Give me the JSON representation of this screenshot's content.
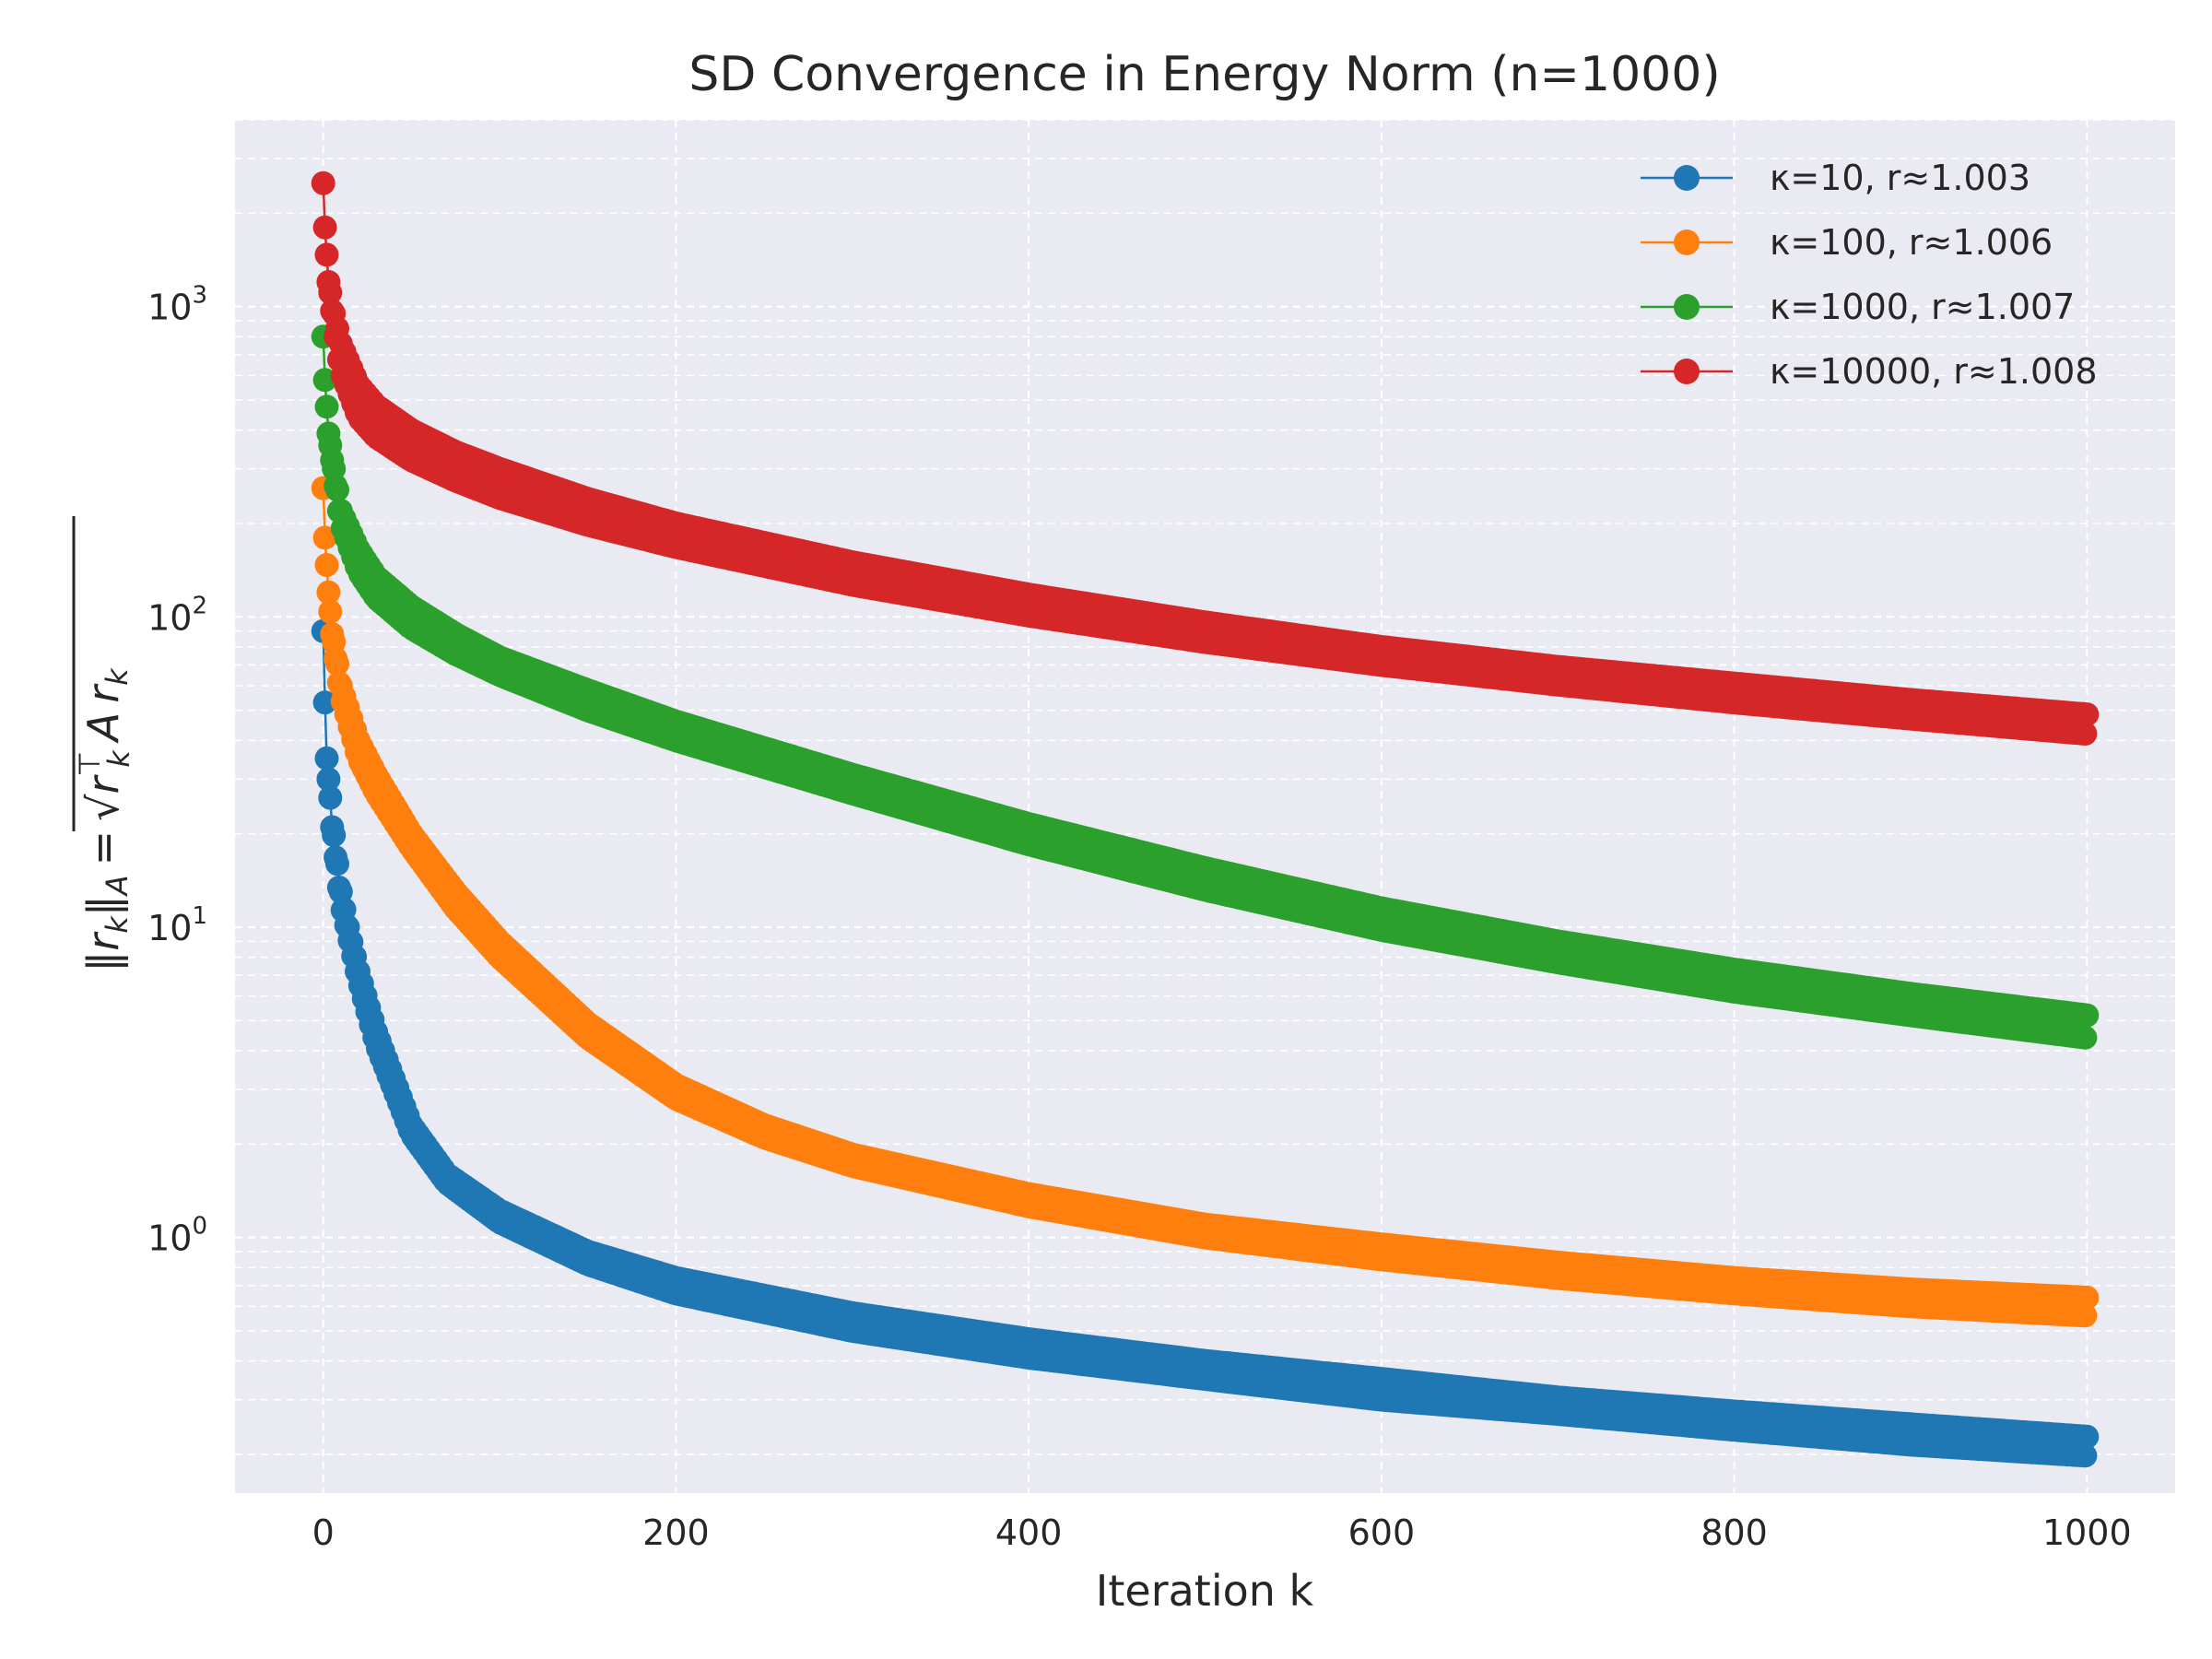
{
  "chart_data": {
    "type": "line",
    "title": "SD Convergence in Energy Norm (n=1000)",
    "xlabel": "Iteration k",
    "ylabel": "‖r_k‖_A = √(r_kᵀ A r_k)",
    "ylabel_parts": {
      "lhs_r": "r",
      "lhs_sub": "k",
      "lhs_norm_sub": "A",
      "eq": "=",
      "sqrt": "√",
      "rt_r": "r",
      "rt_sub": "k",
      "rt_sup": "⊤",
      "a": "A",
      "r2": "r",
      "r2_sub": "k"
    },
    "x_scale": "linear",
    "y_scale": "log",
    "xlim": [
      -50,
      1050
    ],
    "ylim": [
      0.15,
      4000
    ],
    "x_ticks": [
      0,
      200,
      400,
      600,
      800,
      1000
    ],
    "x_tick_labels": [
      "0",
      "200",
      "400",
      "600",
      "800",
      "1000"
    ],
    "y_ticks": [
      {
        "value": 1,
        "base": "10",
        "exp": "0"
      },
      {
        "value": 10,
        "base": "10",
        "exp": "1"
      },
      {
        "value": 100,
        "base": "10",
        "exp": "2"
      },
      {
        "value": 1000,
        "base": "10",
        "exp": "3"
      }
    ],
    "grid": true,
    "grid_minor": true,
    "legend_position": "top-right",
    "marker": "circle",
    "series": [
      {
        "name": "κ=10, r≈1.003",
        "color": "#1f77b4",
        "envelope_upper": [
          [
            0,
            90
          ],
          [
            1,
            55
          ],
          [
            2,
            35
          ],
          [
            3,
            31
          ],
          [
            5,
            22
          ],
          [
            8,
            16
          ],
          [
            10,
            13
          ],
          [
            14,
            10
          ],
          [
            20,
            7.2
          ],
          [
            30,
            4.6
          ],
          [
            50,
            2.3
          ],
          [
            70,
            1.6
          ],
          [
            100,
            1.22
          ],
          [
            150,
            0.9
          ],
          [
            200,
            0.74
          ],
          [
            300,
            0.57
          ],
          [
            400,
            0.47
          ],
          [
            500,
            0.4
          ],
          [
            600,
            0.35
          ],
          [
            700,
            0.305
          ],
          [
            800,
            0.275
          ],
          [
            900,
            0.25
          ],
          [
            1000,
            0.228
          ]
        ],
        "envelope_lower": [
          [
            0,
            90
          ],
          [
            1,
            53
          ],
          [
            2,
            33
          ],
          [
            3,
            30
          ],
          [
            5,
            21
          ],
          [
            8,
            15
          ],
          [
            10,
            12
          ],
          [
            14,
            9.6
          ],
          [
            20,
            6.8
          ],
          [
            30,
            4.2
          ],
          [
            50,
            2.15
          ],
          [
            70,
            1.5
          ],
          [
            100,
            1.12
          ],
          [
            150,
            0.82
          ],
          [
            200,
            0.66
          ],
          [
            300,
            0.5
          ],
          [
            400,
            0.41
          ],
          [
            500,
            0.35
          ],
          [
            600,
            0.3
          ],
          [
            700,
            0.27
          ],
          [
            800,
            0.24
          ],
          [
            900,
            0.215
          ],
          [
            1000,
            0.198
          ]
        ]
      },
      {
        "name": "κ=100, r≈1.006",
        "color": "#ff7f0e",
        "envelope_upper": [
          [
            0,
            260
          ],
          [
            1,
            180
          ],
          [
            3,
            120
          ],
          [
            5,
            90
          ],
          [
            10,
            60
          ],
          [
            20,
            40
          ],
          [
            30,
            31
          ],
          [
            50,
            20
          ],
          [
            75,
            13
          ],
          [
            100,
            9
          ],
          [
            150,
            4.9
          ],
          [
            200,
            3.1
          ],
          [
            250,
            2.3
          ],
          [
            300,
            1.85
          ],
          [
            400,
            1.38
          ],
          [
            500,
            1.1
          ],
          [
            600,
            0.95
          ],
          [
            700,
            0.83
          ],
          [
            800,
            0.74
          ],
          [
            900,
            0.68
          ],
          [
            1000,
            0.64
          ]
        ],
        "envelope_lower": [
          [
            0,
            260
          ],
          [
            1,
            180
          ],
          [
            3,
            120
          ],
          [
            5,
            88
          ],
          [
            10,
            56
          ],
          [
            20,
            35
          ],
          [
            30,
            27
          ],
          [
            50,
            18
          ],
          [
            75,
            11.5
          ],
          [
            100,
            8
          ],
          [
            150,
            4.4
          ],
          [
            200,
            2.8
          ],
          [
            250,
            2.1
          ],
          [
            300,
            1.7
          ],
          [
            400,
            1.26
          ],
          [
            500,
            1.0
          ],
          [
            600,
            0.85
          ],
          [
            700,
            0.74
          ],
          [
            800,
            0.66
          ],
          [
            900,
            0.6
          ],
          [
            1000,
            0.56
          ]
        ]
      },
      {
        "name": "κ=1000, r≈1.007",
        "color": "#2ca02c",
        "envelope_upper": [
          [
            0,
            800
          ],
          [
            1,
            580
          ],
          [
            3,
            390
          ],
          [
            6,
            300
          ],
          [
            10,
            220
          ],
          [
            20,
            165
          ],
          [
            30,
            135
          ],
          [
            50,
            108
          ],
          [
            75,
            88
          ],
          [
            100,
            74
          ],
          [
            150,
            58
          ],
          [
            200,
            46
          ],
          [
            300,
            31
          ],
          [
            400,
            21.5
          ],
          [
            500,
            15.5
          ],
          [
            600,
            11.5
          ],
          [
            700,
            9
          ],
          [
            800,
            7.3
          ],
          [
            900,
            6.1
          ],
          [
            1000,
            5.2
          ]
        ],
        "envelope_lower": [
          [
            0,
            800
          ],
          [
            1,
            580
          ],
          [
            3,
            390
          ],
          [
            6,
            290
          ],
          [
            10,
            200
          ],
          [
            20,
            140
          ],
          [
            30,
            115
          ],
          [
            50,
            92
          ],
          [
            75,
            76
          ],
          [
            100,
            65
          ],
          [
            150,
            50
          ],
          [
            200,
            40
          ],
          [
            300,
            27
          ],
          [
            400,
            18.5
          ],
          [
            500,
            13.2
          ],
          [
            600,
            9.8
          ],
          [
            700,
            7.7
          ],
          [
            800,
            6.2
          ],
          [
            900,
            5.2
          ],
          [
            1000,
            4.4
          ]
        ]
      },
      {
        "name": "κ=10000, r≈1.008",
        "color": "#d62728",
        "envelope_upper": [
          [
            0,
            2500
          ],
          [
            1,
            1800
          ],
          [
            3,
            1200
          ],
          [
            6,
            950
          ],
          [
            10,
            760
          ],
          [
            20,
            560
          ],
          [
            30,
            480
          ],
          [
            50,
            400
          ],
          [
            75,
            340
          ],
          [
            100,
            300
          ],
          [
            150,
            240
          ],
          [
            200,
            200
          ],
          [
            300,
            150
          ],
          [
            400,
            118
          ],
          [
            500,
            96
          ],
          [
            600,
            80
          ],
          [
            700,
            69
          ],
          [
            800,
            61
          ],
          [
            900,
            54
          ],
          [
            1000,
            48.5
          ]
        ],
        "envelope_lower": [
          [
            0,
            2500
          ],
          [
            1,
            1800
          ],
          [
            3,
            1200
          ],
          [
            6,
            870
          ],
          [
            10,
            620
          ],
          [
            20,
            440
          ],
          [
            30,
            380
          ],
          [
            50,
            320
          ],
          [
            75,
            275
          ],
          [
            100,
            242
          ],
          [
            150,
            198
          ],
          [
            200,
            168
          ],
          [
            300,
            127
          ],
          [
            400,
            101
          ],
          [
            500,
            83
          ],
          [
            600,
            70
          ],
          [
            700,
            60.5
          ],
          [
            800,
            53
          ],
          [
            900,
            47
          ],
          [
            1000,
            42
          ]
        ]
      }
    ]
  }
}
